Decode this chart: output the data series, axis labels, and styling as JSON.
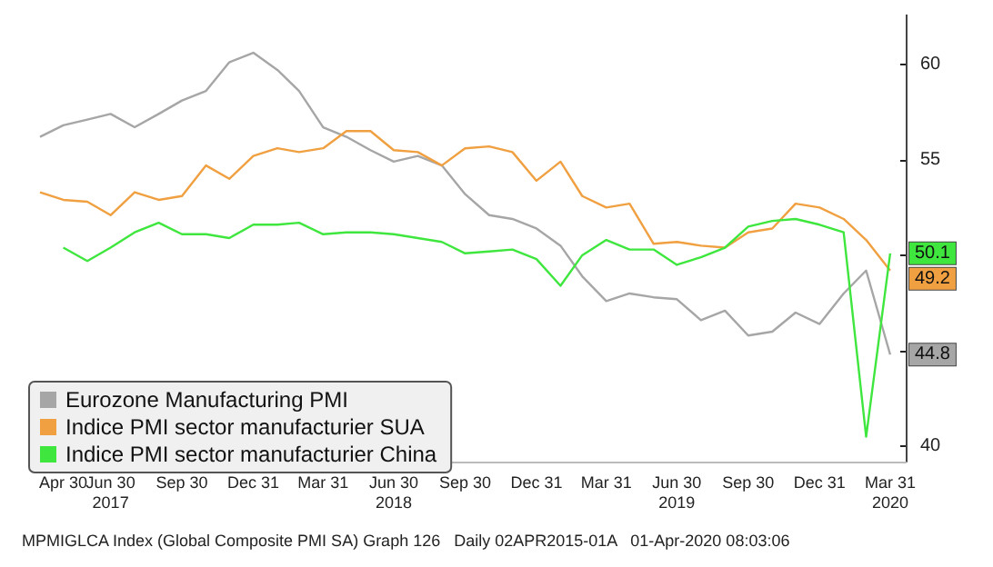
{
  "chart_data": {
    "type": "line",
    "x": [
      "2017-03-31",
      "2017-04-30",
      "2017-05-31",
      "2017-06-30",
      "2017-07-31",
      "2017-08-31",
      "2017-09-30",
      "2017-10-31",
      "2017-11-30",
      "2017-12-31",
      "2018-01-31",
      "2018-02-28",
      "2018-03-31",
      "2018-04-30",
      "2018-05-31",
      "2018-06-30",
      "2018-07-31",
      "2018-08-31",
      "2018-09-30",
      "2018-10-31",
      "2018-11-30",
      "2018-12-31",
      "2019-01-31",
      "2019-02-28",
      "2019-03-31",
      "2019-04-30",
      "2019-05-31",
      "2019-06-30",
      "2019-07-31",
      "2019-08-31",
      "2019-09-30",
      "2019-10-31",
      "2019-11-30",
      "2019-12-31",
      "2020-01-31",
      "2020-02-29",
      "2020-03-31"
    ],
    "series": [
      {
        "name": "Eurozone Manufacturing PMI",
        "color": "#a6a6a6",
        "values": [
          56.2,
          56.8,
          57.1,
          57.4,
          56.7,
          57.4,
          58.1,
          58.6,
          60.1,
          60.6,
          59.7,
          58.6,
          56.7,
          56.2,
          55.5,
          54.9,
          55.2,
          54.7,
          53.2,
          52.1,
          51.9,
          51.4,
          50.5,
          48.9,
          47.6,
          48.0,
          47.8,
          47.7,
          46.6,
          47.1,
          45.8,
          46.0,
          47.0,
          46.4,
          48.0,
          49.2,
          44.8
        ]
      },
      {
        "name": "Indice PMI sector manufacturier SUA",
        "color": "#f0a040",
        "values": [
          53.3,
          52.9,
          52.8,
          52.1,
          53.3,
          52.9,
          53.1,
          54.7,
          54.0,
          55.2,
          55.6,
          55.4,
          55.6,
          56.5,
          56.5,
          55.5,
          55.4,
          54.7,
          55.6,
          55.7,
          55.4,
          53.9,
          54.9,
          53.1,
          52.5,
          52.7,
          50.6,
          50.7,
          50.5,
          50.4,
          51.2,
          51.4,
          52.7,
          52.5,
          51.9,
          50.8,
          49.2
        ]
      },
      {
        "name": "Indice PMI sector manufacturier China",
        "color": "#3ee63e",
        "values": [
          null,
          50.4,
          49.7,
          50.4,
          51.2,
          51.7,
          51.1,
          51.1,
          50.9,
          51.6,
          51.6,
          51.7,
          51.1,
          51.2,
          51.2,
          51.1,
          50.9,
          50.7,
          50.1,
          50.2,
          50.3,
          49.8,
          48.4,
          50.0,
          50.8,
          50.3,
          50.3,
          49.5,
          49.9,
          50.4,
          51.5,
          51.8,
          51.9,
          51.6,
          51.2,
          40.5,
          50.1
        ]
      }
    ],
    "xlim": [
      "2017-03-31",
      "2020-04-20"
    ],
    "xticks": [
      {
        "value": "2017-04-30",
        "label": "Apr 30"
      },
      {
        "value": "2017-06-30",
        "label": "Jun 30\n2017"
      },
      {
        "value": "2017-09-30",
        "label": "Sep 30"
      },
      {
        "value": "2017-12-31",
        "label": "Dec 31"
      },
      {
        "value": "2018-03-31",
        "label": "Mar 31"
      },
      {
        "value": "2018-06-30",
        "label": "Jun 30\n2018"
      },
      {
        "value": "2018-09-30",
        "label": "Sep 30"
      },
      {
        "value": "2018-12-31",
        "label": "Dec 31"
      },
      {
        "value": "2019-03-31",
        "label": "Mar 31"
      },
      {
        "value": "2019-06-30",
        "label": "Jun 30\n2019"
      },
      {
        "value": "2019-09-30",
        "label": "Sep 30"
      },
      {
        "value": "2019-12-31",
        "label": "Dec 31"
      },
      {
        "value": "2020-03-31",
        "label": "Mar 31\n2020"
      }
    ],
    "ylim": [
      39.2,
      62.6
    ],
    "yticks": [
      40,
      {
        "value": 45,
        "label": null
      },
      {
        "value": 50,
        "label": null
      },
      55,
      60
    ],
    "legend": "bottom left",
    "grid": false,
    "marker": "none",
    "line_style": "solid",
    "annotations": [
      {
        "text": "44.8",
        "x": "2020-03-31",
        "y": 44.8
      },
      {
        "text": "49.2",
        "x": "2020-03-31",
        "y": 49.2
      },
      {
        "text": "50.1",
        "x": "2020-03-31",
        "y": 50.1
      },
      "MPMIGLCA Index (Global Composite PMI SA) Graph 126   Daily 02APR2015-01A   01-Apr-2020 08:03:06"
    ]
  }
}
